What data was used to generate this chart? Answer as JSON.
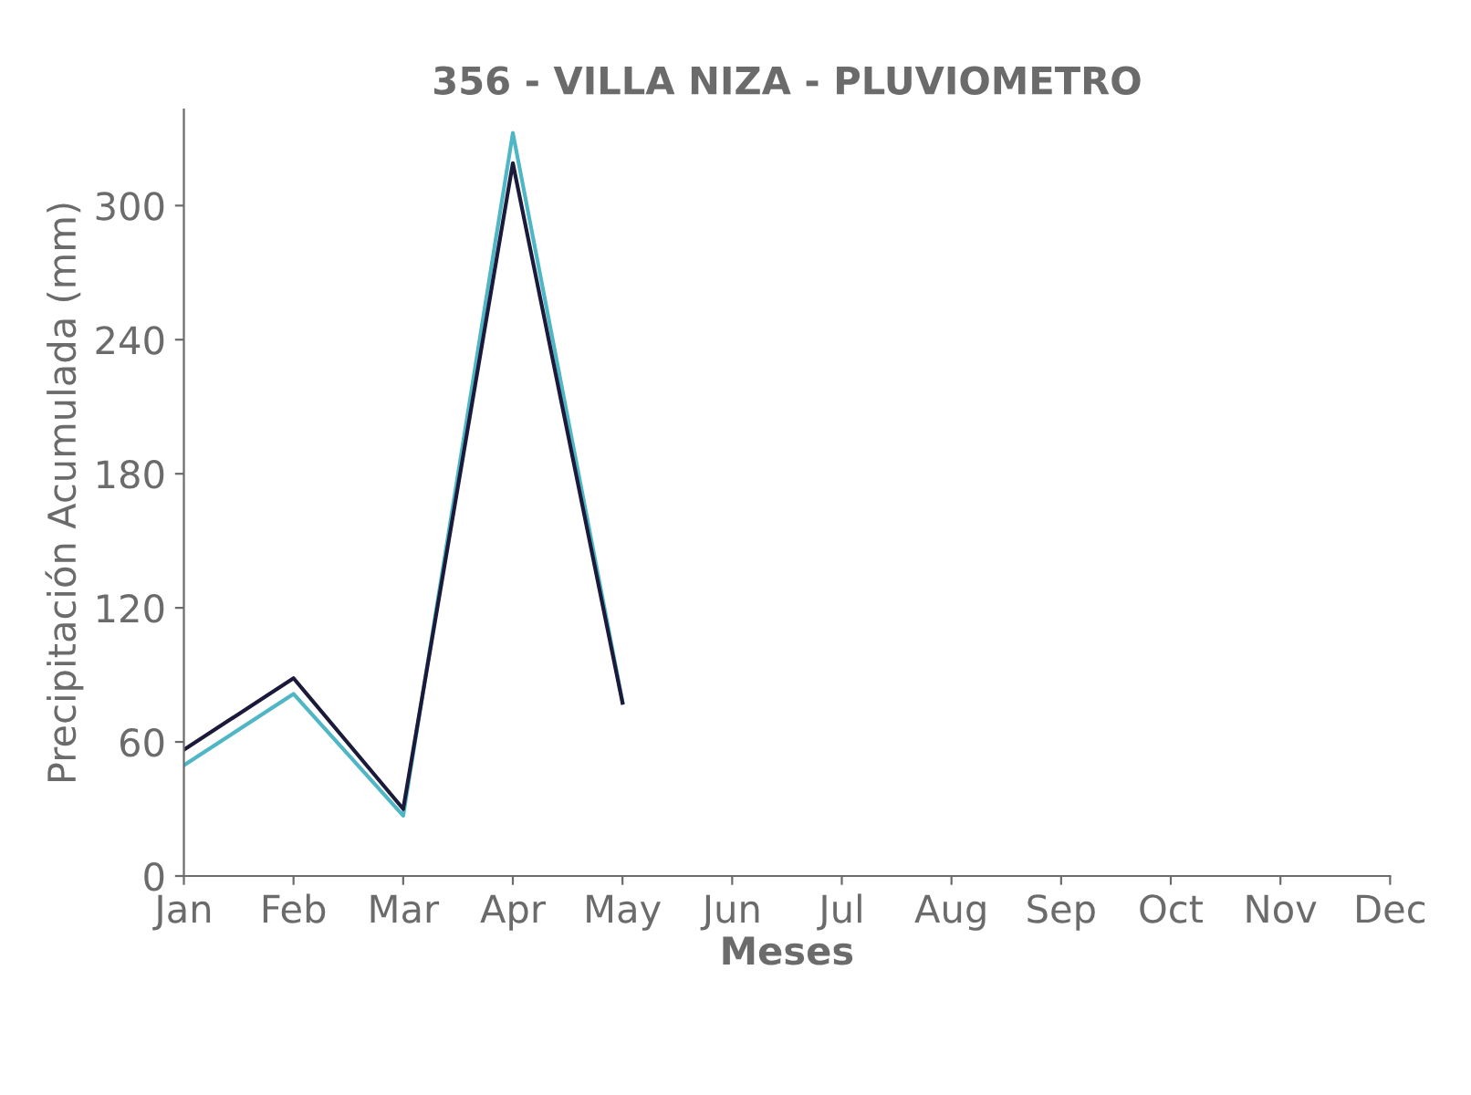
{
  "chart_data": {
    "type": "line",
    "title": "356 - VILLA NIZA - PLUVIOMETRO",
    "xlabel": "Meses",
    "ylabel": "Precipitación Acumulada (mm)",
    "categories": [
      "Jan",
      "Feb",
      "Mar",
      "Apr",
      "May",
      "Jun",
      "Jul",
      "Aug",
      "Sep",
      "Oct",
      "Nov",
      "Dec"
    ],
    "series": [
      {
        "color": "#4fb6c6",
        "values": [
          49.5,
          81.5,
          27,
          332.5,
          78,
          null,
          null,
          null,
          null,
          null,
          null,
          null
        ]
      },
      {
        "color": "#1c1a3b",
        "values": [
          56.5,
          88.5,
          30,
          319,
          77.5,
          null,
          null,
          null,
          null,
          null,
          null,
          null
        ]
      }
    ],
    "ylim": [
      0,
      343
    ],
    "yticks": [
      0,
      60,
      120,
      180,
      240,
      300
    ],
    "grid": false,
    "legend": false,
    "marker": "none",
    "line_style": "solid"
  }
}
